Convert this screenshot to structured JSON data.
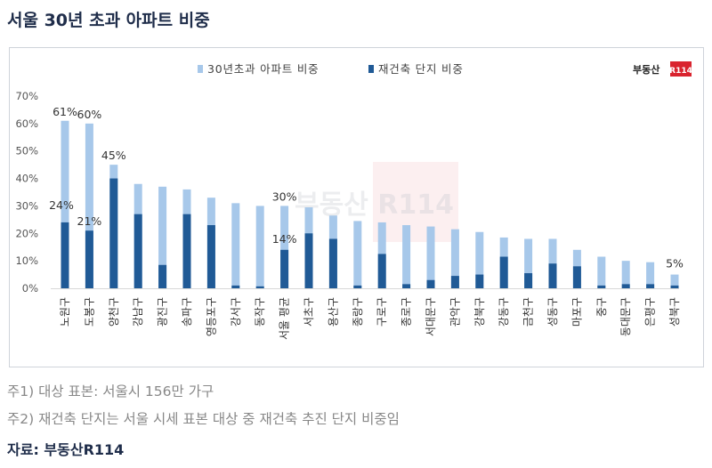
{
  "title": "서울 30년 초과 아파트 비중",
  "logo": {
    "text": "부동산",
    "badge": "R114",
    "badge_color": "#d9232e"
  },
  "watermark": "부동산 R114",
  "notes": [
    "주1) 대상 표본: 서울시 156만 가구",
    "주2) 재건축 단지는 서울 시세 표본 대상 중 재건축 추진 단지 비중임"
  ],
  "source": "자료: 부동산R114",
  "colors": {
    "light": "#a7c8ea",
    "dark": "#205a96"
  },
  "chart_data": {
    "type": "bar",
    "stacked": "overlay",
    "categories": [
      "노원구",
      "도봉구",
      "양천구",
      "강남구",
      "광진구",
      "송파구",
      "영등포구",
      "강서구",
      "동작구",
      "서울 평균",
      "서초구",
      "용산구",
      "종랑구",
      "구로구",
      "종로구",
      "서대문구",
      "관악구",
      "강북구",
      "강동구",
      "금천구",
      "성동구",
      "마포구",
      "중구",
      "동대문구",
      "은평구",
      "성북구"
    ],
    "series": [
      {
        "name": "30년초과 아파트 비중",
        "values": [
          61,
          60,
          45,
          38,
          37,
          36,
          33,
          31,
          30,
          30,
          29.5,
          26.5,
          24.5,
          24,
          23,
          22.5,
          21.5,
          20.5,
          18.5,
          18,
          18,
          14,
          11.5,
          10,
          9.5,
          5
        ],
        "color": "#a7c8ea"
      },
      {
        "name": "재건축 단지 비중",
        "values": [
          24,
          21,
          40,
          27,
          8.5,
          27,
          23,
          1,
          0.7,
          14,
          20,
          18,
          1,
          12.5,
          1.5,
          3,
          4.5,
          5,
          11.5,
          5.5,
          9,
          8,
          1,
          1.5,
          1.5,
          1
        ],
        "color": "#205a96"
      }
    ],
    "data_labels": [
      {
        "category": "노원구",
        "series": "30년초과 아파트 비중",
        "text": "61%"
      },
      {
        "category": "도봉구",
        "series": "30년초과 아파트 비중",
        "text": "60%"
      },
      {
        "category": "양천구",
        "series": "30년초과 아파트 비중",
        "text": "45%"
      },
      {
        "category": "서울 평균",
        "series": "30년초과 아파트 비중",
        "text": "30%"
      },
      {
        "category": "성북구",
        "series": "30년초과 아파트 비중",
        "text": "5%"
      },
      {
        "category": "노원구",
        "series": "재건축 단지 비중",
        "text": "24%"
      },
      {
        "category": "도봉구",
        "series": "재건축 단지 비중",
        "text": "21%"
      },
      {
        "category": "서울 평균",
        "series": "재건축 단지 비중",
        "text": "14%"
      }
    ],
    "y_ticks": [
      "0%",
      "10%",
      "20%",
      "30%",
      "40%",
      "50%",
      "60%",
      "70%"
    ],
    "ylim": [
      0,
      70
    ],
    "grid": false,
    "legend_position": "top-center"
  }
}
